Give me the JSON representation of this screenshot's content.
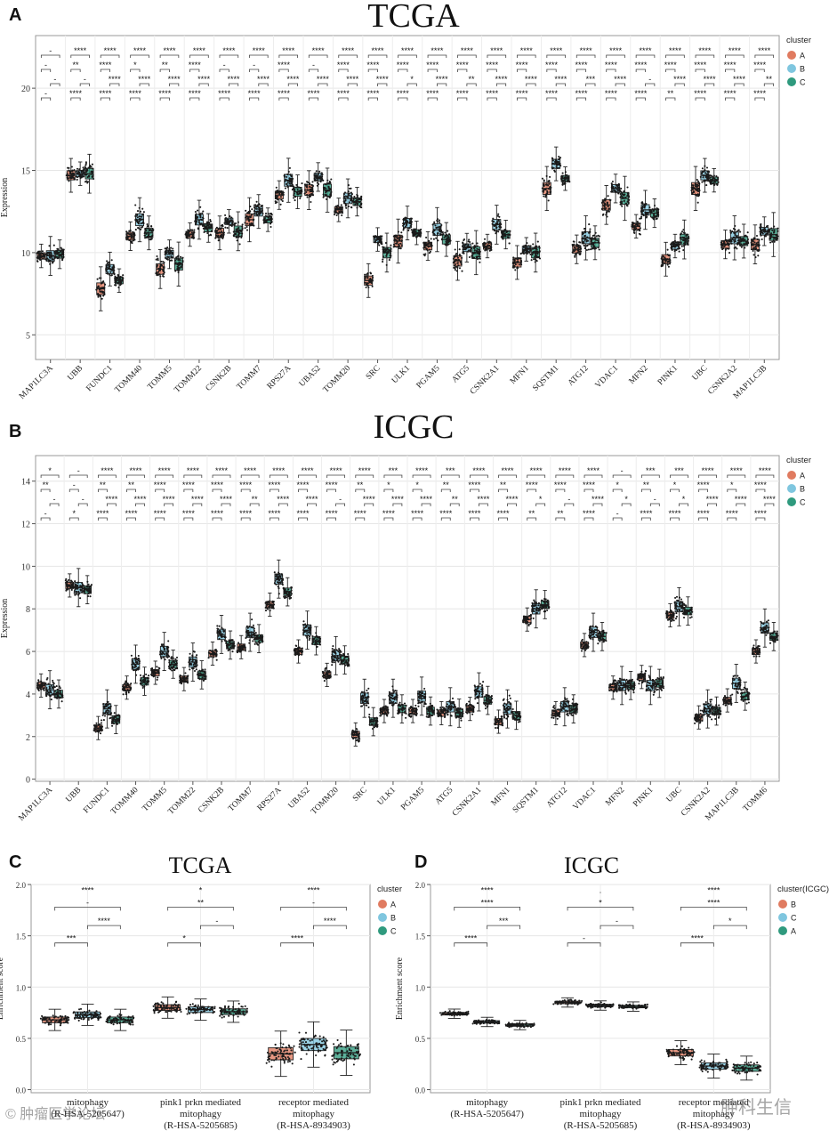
{
  "panel_labels": {
    "a": "A",
    "b": "B",
    "c": "C",
    "d": "D"
  },
  "colors": {
    "A": "#e07b60",
    "B": "#7fc6df",
    "C": "#2f9a7e",
    "C_soft": "#7dd3b6"
  },
  "chart_data": [
    {
      "id": "A",
      "type": "box",
      "title": "TCGA",
      "ylabel": "Expression",
      "ylim": [
        3.5,
        23.2
      ],
      "yticks": [
        5,
        10,
        15,
        20
      ],
      "legend": {
        "title": "cluster",
        "labels": [
          "A",
          "B",
          "C"
        ],
        "placement": "right"
      },
      "groups": [
        "A",
        "B",
        "C"
      ],
      "categories": [
        "MAP1LC3A",
        "UBB",
        "FUNDC1",
        "TOMM40",
        "TOMM5",
        "TOMM22",
        "CSNK2B",
        "TOMM7",
        "RPS27A",
        "UBA52",
        "TOMM20",
        "SRC",
        "ULK1",
        "PGAM5",
        "ATG5",
        "CSNK2A1",
        "MFN1",
        "SQSTM1",
        "ATG12",
        "VDAC1",
        "MFN2",
        "PINK1",
        "UBC",
        "CSNK2A2",
        "MAP1LC3B"
      ],
      "medians": [
        [
          9.8,
          9.8,
          9.9
        ],
        [
          14.7,
          14.8,
          14.8
        ],
        [
          7.8,
          9.0,
          8.3
        ],
        [
          11.0,
          12.0,
          11.2
        ],
        [
          9.0,
          9.9,
          9.3
        ],
        [
          11.1,
          12.0,
          11.5
        ],
        [
          11.2,
          11.9,
          11.3
        ],
        [
          12.0,
          12.5,
          12.0
        ],
        [
          13.5,
          14.4,
          13.7
        ],
        [
          13.8,
          14.6,
          13.8
        ],
        [
          12.6,
          13.3,
          13.1
        ],
        [
          8.3,
          10.8,
          10.0
        ],
        [
          10.7,
          11.8,
          11.2
        ],
        [
          10.4,
          11.4,
          10.8
        ],
        [
          9.5,
          10.3,
          10.0
        ],
        [
          10.4,
          11.7,
          11.1
        ],
        [
          9.4,
          10.2,
          10.0
        ],
        [
          13.9,
          15.4,
          14.5
        ],
        [
          10.2,
          10.9,
          10.6
        ],
        [
          12.9,
          13.9,
          13.3
        ],
        [
          11.6,
          12.6,
          12.4
        ],
        [
          9.6,
          10.4,
          10.8
        ],
        [
          13.9,
          14.7,
          14.4
        ],
        [
          10.5,
          10.9,
          10.7
        ],
        [
          10.5,
          11.3,
          11.1
        ]
      ],
      "stat_rows": [
        [
          "-",
          "****",
          "****",
          "****",
          "****",
          "****",
          "****",
          "****",
          "****",
          "****",
          "****",
          "****",
          "****",
          "****",
          "****",
          "****",
          "****",
          "****",
          "****",
          "****",
          "****",
          "****",
          "****",
          "****",
          "****"
        ],
        [
          "-",
          "**",
          "****",
          "*",
          "**",
          "****",
          "-",
          "-",
          "****",
          "-",
          "****",
          "****",
          "****",
          "****",
          "****",
          "****",
          "****",
          "****",
          "****",
          "****",
          "****",
          "****",
          "****",
          "****",
          "****"
        ],
        [
          "-",
          "-",
          "****",
          "****",
          "****",
          "****",
          "****",
          "****",
          "****",
          "****",
          "****",
          "****",
          "*",
          "****",
          "**",
          "****",
          "****",
          "****",
          "***",
          "****",
          "-",
          "****",
          "****",
          "****",
          "**"
        ],
        [
          "-",
          "****",
          "****",
          "****",
          "****",
          "****",
          "****",
          "****",
          "****",
          "****",
          "****",
          "****",
          "****",
          "****",
          "****",
          "****",
          "****",
          "****",
          "****",
          "****",
          "****",
          "**",
          "****",
          "****",
          "****"
        ]
      ]
    },
    {
      "id": "B",
      "type": "box",
      "title": "ICGC",
      "ylabel": "Expression",
      "ylim": [
        -0.1,
        15.2
      ],
      "yticks": [
        0,
        2,
        4,
        6,
        8,
        10,
        12,
        14
      ],
      "legend": {
        "title": "cluster",
        "labels": [
          "A",
          "B",
          "C"
        ],
        "placement": "right"
      },
      "groups": [
        "A",
        "B",
        "C"
      ],
      "categories": [
        "MAP1LC3A",
        "UBB",
        "FUNDC1",
        "TOMM40",
        "TOMM5",
        "TOMM22",
        "CSNK2B",
        "TOMM7",
        "RPS27A",
        "UBA52",
        "TOMM20",
        "SRC",
        "ULK1",
        "PGAM5",
        "ATG5",
        "CSNK2A1",
        "MFN1",
        "SQSTM1",
        "ATG12",
        "VDAC1",
        "MFN2",
        "PINK1",
        "UBC",
        "CSNK2A2",
        "MAP1LC3B",
        "TOMM6"
      ],
      "medians": [
        [
          4.4,
          4.2,
          4.0
        ],
        [
          9.1,
          9.0,
          8.9
        ],
        [
          2.4,
          3.3,
          2.8
        ],
        [
          4.3,
          5.4,
          4.6
        ],
        [
          5.0,
          6.0,
          5.4
        ],
        [
          4.7,
          5.5,
          4.9
        ],
        [
          5.9,
          6.8,
          6.3
        ],
        [
          6.2,
          6.9,
          6.6
        ],
        [
          8.2,
          9.4,
          8.8
        ],
        [
          6.0,
          7.0,
          6.5
        ],
        [
          4.9,
          5.8,
          5.6
        ],
        [
          2.1,
          3.8,
          2.7
        ],
        [
          3.2,
          3.8,
          3.3
        ],
        [
          3.2,
          3.9,
          3.2
        ],
        [
          3.1,
          3.4,
          3.1
        ],
        [
          3.3,
          4.1,
          3.7
        ],
        [
          2.7,
          3.3,
          3.0
        ],
        [
          7.5,
          8.0,
          8.2
        ],
        [
          3.1,
          3.4,
          3.3
        ],
        [
          6.3,
          6.9,
          6.7
        ],
        [
          4.3,
          4.4,
          4.4
        ],
        [
          4.8,
          4.4,
          4.5
        ],
        [
          7.7,
          8.1,
          7.9
        ],
        [
          2.9,
          3.3,
          3.2
        ],
        [
          3.7,
          4.5,
          3.9
        ],
        [
          6.0,
          7.1,
          6.7
        ]
      ],
      "stat_rows": [
        [
          "*",
          "-",
          "****",
          "****",
          "****",
          "****",
          "****",
          "****",
          "****",
          "****",
          "****",
          "****",
          "***",
          "****",
          "***",
          "****",
          "****",
          "****",
          "****",
          "****",
          "-",
          "***",
          "***",
          "****",
          "****",
          "****"
        ],
        [
          "**",
          "-",
          "**",
          "**",
          "****",
          "****",
          "****",
          "****",
          "****",
          "****",
          "****",
          "**",
          "*",
          "*",
          "**",
          "****",
          "**",
          "****",
          "****",
          "****",
          "*",
          "**",
          "*",
          "****",
          "*",
          "****"
        ],
        [
          "-",
          "-",
          "****",
          "****",
          "****",
          "****",
          "****",
          "**",
          "****",
          "****",
          "-",
          "****",
          "****",
          "****",
          "**",
          "****",
          "****",
          "*",
          "-",
          "****",
          "*",
          "-",
          "*",
          "****",
          "****",
          "****"
        ],
        [
          "-",
          "*",
          "****",
          "****",
          "****",
          "****",
          "****",
          "****",
          "****",
          "****",
          "****",
          "****",
          "****",
          "****",
          "****",
          "****",
          "****",
          "**",
          "**",
          "****",
          "-",
          "****",
          "****",
          "****",
          "****",
          "****"
        ]
      ]
    },
    {
      "id": "C",
      "type": "box",
      "title": "TCGA",
      "ylabel": "Enrichment score",
      "ylim": [
        -0.03,
        2.0
      ],
      "yticks": [
        "0.0",
        "0.5",
        "1.0",
        "1.5",
        "2.0"
      ],
      "legend": {
        "title": "cluster",
        "labels": [
          "A",
          "B",
          "C"
        ],
        "placement": "right"
      },
      "groups": [
        "A",
        "B",
        "C"
      ],
      "categories": [
        {
          "l1": "mitophagy",
          "l2": "(R-HSA-5205647)"
        },
        {
          "l1": "pink1 prkn mediated",
          "l2": "mitophagy",
          "l3": "(R-HSA-5205685)"
        },
        {
          "l1": "receptor mediated",
          "l2": "mitophagy",
          "l3": "(R-HSA-8934903)"
        }
      ],
      "medians": [
        [
          0.68,
          0.73,
          0.68
        ],
        [
          0.8,
          0.78,
          0.76
        ],
        [
          0.35,
          0.44,
          0.36
        ]
      ],
      "brackets": [
        [
          "****",
          "-",
          "****",
          "***"
        ],
        [
          "*",
          "**",
          "-",
          "*"
        ],
        [
          "****",
          "-",
          "****",
          "****"
        ]
      ]
    },
    {
      "id": "D",
      "type": "box",
      "title": "ICGC",
      "ylabel": "Enrichment score",
      "ylim": [
        -0.03,
        2.0
      ],
      "yticks": [
        "0.0",
        "0.5",
        "1.0",
        "1.5",
        "2.0"
      ],
      "legend": {
        "title": "cluster(ICGC)",
        "labels": [
          "B",
          "C",
          "A"
        ],
        "placement": "right"
      },
      "groups": [
        "B",
        "C",
        "A"
      ],
      "categories": [
        {
          "l1": "mitophagy",
          "l2": "(R-HSA-5205647)"
        },
        {
          "l1": "pink1 prkn mediated",
          "l2": "mitophagy",
          "l3": "(R-HSA-5205685)"
        },
        {
          "l1": "receptor mediated",
          "l2": "mitophagy",
          "l3": "(R-HSA-8934903)"
        }
      ],
      "medians": [
        [
          0.74,
          0.66,
          0.63
        ],
        [
          0.85,
          0.82,
          0.81
        ],
        [
          0.36,
          0.23,
          0.21
        ]
      ],
      "brackets": [
        [
          "****",
          "****",
          "***",
          "****"
        ],
        [
          ".",
          "*",
          "-",
          "-"
        ],
        [
          "****",
          "****",
          "*",
          "****"
        ]
      ]
    }
  ],
  "watermarks": {
    "left": "© 肿瘤医学论坛",
    "right": "肿科生信"
  }
}
